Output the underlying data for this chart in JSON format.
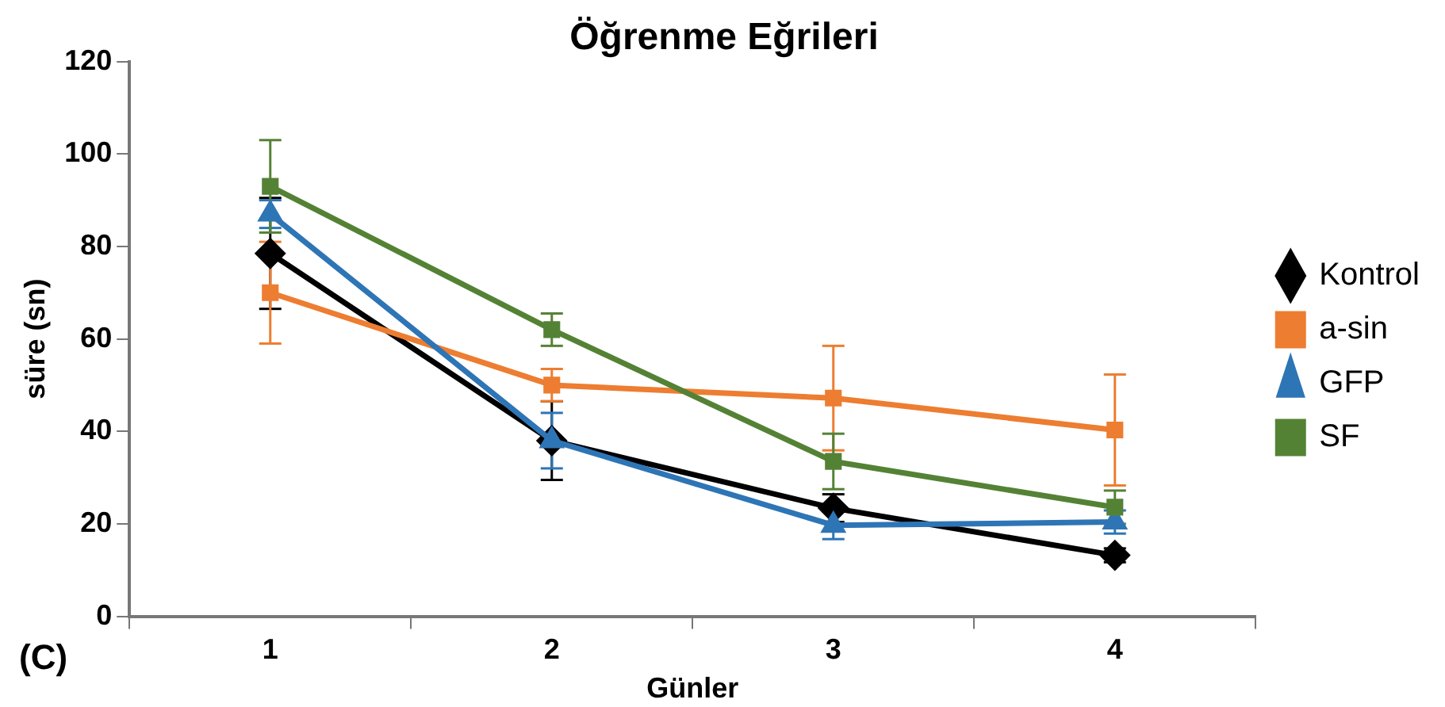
{
  "chart_data": {
    "type": "line",
    "title": "Öğrenme Eğrileri",
    "xlabel": "Günler",
    "ylabel": "süre (sn)",
    "categories": [
      "1",
      "2",
      "3",
      "4"
    ],
    "ylim": [
      0,
      120
    ],
    "yticks": [
      0,
      20,
      40,
      60,
      80,
      100,
      120
    ],
    "grid": false,
    "legend": "right",
    "annotations": [
      "(C)"
    ],
    "series": [
      {
        "name": "Kontrol",
        "color": "#000000",
        "marker": "diamond",
        "values": [
          78.5,
          38,
          23.4,
          13.2
        ],
        "errors": [
          12,
          8.5,
          3,
          1.5
        ]
      },
      {
        "name": "a-sin",
        "color": "#ed7d31",
        "marker": "square",
        "values": [
          70,
          50,
          47.2,
          40.3
        ],
        "errors": [
          11,
          3.5,
          11.3,
          12
        ]
      },
      {
        "name": "GFP",
        "color": "#2e75b6",
        "marker": "triangle",
        "values": [
          87,
          38,
          19.7,
          20.4
        ],
        "errors": [
          3,
          6,
          3,
          2.5
        ]
      },
      {
        "name": "SF",
        "color": "#548235",
        "marker": "square",
        "values": [
          93,
          62,
          33.5,
          23.6
        ],
        "errors": [
          10,
          3.5,
          6,
          3.6
        ]
      }
    ]
  }
}
